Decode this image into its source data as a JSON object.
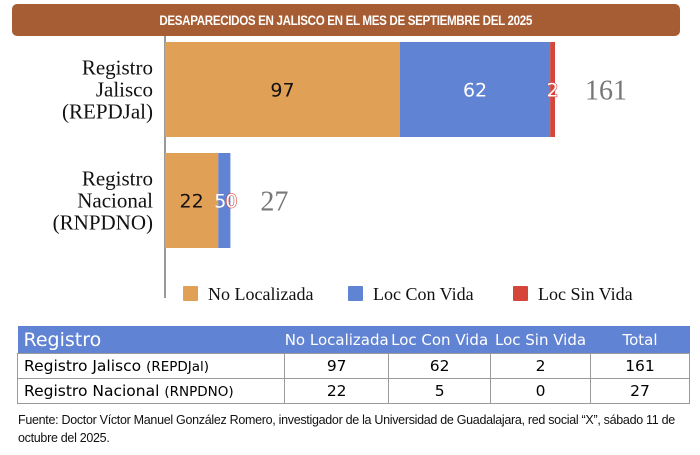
{
  "title": "DESAPARECIDOS EN JALISCO EN EL MES DE SEPTIEMBRE DEL 2025",
  "chart_data": {
    "type": "bar",
    "orientation": "horizontal",
    "stacked": true,
    "title": "DESAPARECIDOS EN JALISCO EN EL MES DE SEPTIEMBRE DEL 2025",
    "categories": [
      "Registro Jalisco (REPDJal)",
      "Registro Nacional (RNPDNO)"
    ],
    "category_lines": [
      [
        "Registro",
        "Jalisco",
        "(REPDJal)"
      ],
      [
        "Registro",
        "Nacional",
        "(RNPDNO)"
      ]
    ],
    "series": [
      {
        "name": "No Localizada",
        "color": "#e0a055",
        "values": [
          97,
          22
        ],
        "label_color": "#111111"
      },
      {
        "name": "Loc Con Vida",
        "color": "#6183d3",
        "values": [
          62,
          5
        ],
        "label_color": "#ffffff"
      },
      {
        "name": "Loc Sin Vida",
        "color": "#d5453a",
        "values": [
          2,
          0
        ],
        "label_color": "#ffffff"
      }
    ],
    "totals": [
      161,
      27
    ],
    "xlim": [
      0,
      161
    ],
    "xlabel": "",
    "ylabel": "",
    "grid": false,
    "legend": "bottom"
  },
  "table": {
    "headers": [
      "Registro",
      "No Localizada",
      "Loc Con Vida",
      "Loc Sin Vida",
      "Total"
    ],
    "rows": [
      {
        "name": "Registro Jalisco",
        "abbr": "(REPDJal)",
        "no_localizada": "97",
        "con_vida": "62",
        "sin_vida": "2",
        "total": "161"
      },
      {
        "name": "Registro Nacional",
        "abbr": "(RNPDNO)",
        "no_localizada": "22",
        "con_vida": "5",
        "sin_vida": "0",
        "total": "27"
      }
    ]
  },
  "source": "Fuente: Doctor Víctor Manuel González Romero, investigador de la Universidad de Guadalajara, red social “X”, sábado 11 de octubre del 2025."
}
